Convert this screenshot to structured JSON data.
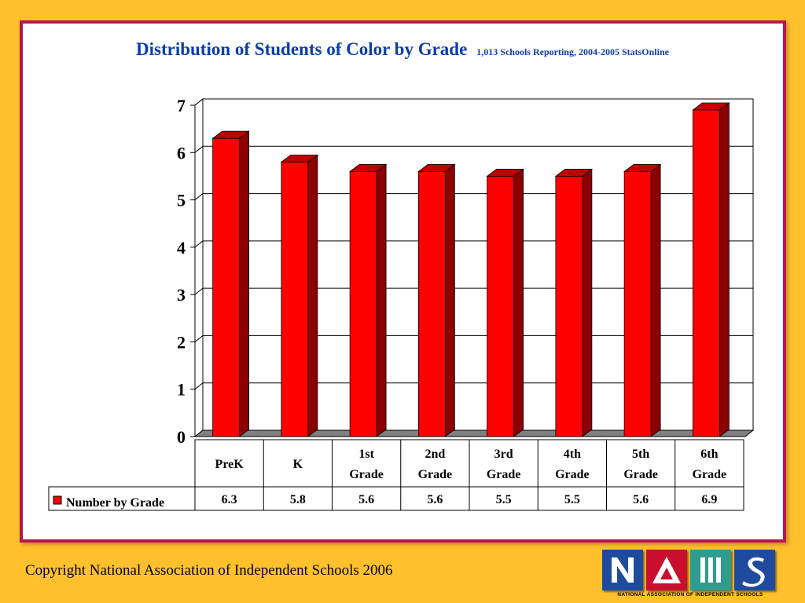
{
  "slide": {
    "title": "Distribution of Students of Color by Grade",
    "subtitle": "1,013 Schools Reporting, 2004-2005 StatsOnline",
    "copyright": "Copyright National Association of Independent Schools 2006"
  },
  "logo": {
    "caption": "NATIONAL ASSOCIATION OF INDEPENDENT SCHOOLS",
    "letters": [
      "N",
      "A",
      "I",
      "S"
    ],
    "colors": [
      "#1E4B9E",
      "#C8102E",
      "#2E9C8F",
      "#1E4B9E"
    ]
  },
  "colors": {
    "bar_front": "#FF0000",
    "bar_side": "#8B0000",
    "bar_top": "#C00000",
    "background": "#FFC02E",
    "frame": "#B5174F",
    "title": "#0B3EA8"
  },
  "chart_data": {
    "type": "bar",
    "title": "Distribution of Students of Color by Grade",
    "subtitle": "1,013 Schools Reporting, 2004-2005 StatsOnline",
    "categories": [
      [
        "PreK"
      ],
      [
        "K"
      ],
      [
        "1st",
        "Grade"
      ],
      [
        "2nd",
        "Grade"
      ],
      [
        "3rd",
        "Grade"
      ],
      [
        "4th",
        "Grade"
      ],
      [
        "5th",
        "Grade"
      ],
      [
        "6th",
        "Grade"
      ]
    ],
    "series": [
      {
        "name": "Number by Grade",
        "values": [
          6.3,
          5.8,
          5.6,
          5.6,
          5.5,
          5.5,
          5.6,
          6.9
        ]
      }
    ],
    "data_labels": [
      "6.3",
      "5.8",
      "5.6",
      "5.6",
      "5.5",
      "5.5",
      "5.6",
      "6.9"
    ],
    "ylim": [
      0,
      7
    ],
    "yticks": [
      0,
      1,
      2,
      3,
      4,
      5,
      6,
      7
    ],
    "grid": true,
    "legend": "in data table",
    "style": "3d-bar"
  }
}
